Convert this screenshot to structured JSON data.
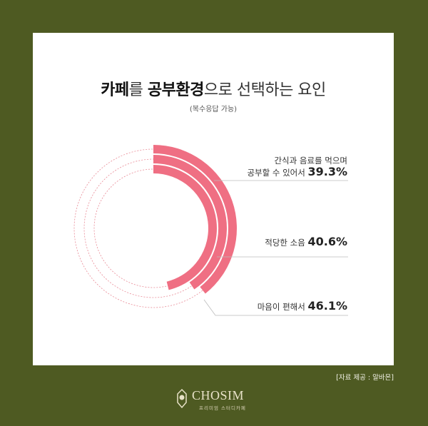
{
  "title": {
    "bold1": "카페",
    "part2": "를 ",
    "bold2": "공부환경",
    "part3": "으로 선택하는 요인"
  },
  "subtitle": "(복수응답 가능)",
  "source": "[자료 제공 : 알바몬]",
  "logo": {
    "name": "CHOSIM",
    "tagline": "프리미엄 스터디카페"
  },
  "colors": {
    "arc": "#ef6f83",
    "track": "#e98a96",
    "leader": "#bbbbbb",
    "background": "#4e5a22"
  },
  "chart_data": {
    "type": "radial-bar",
    "items": [
      {
        "label_line1": "간식과 음료를 먹으며",
        "label_line2": "공부할 수 있어서",
        "value": 39.3,
        "value_text": "39.3%"
      },
      {
        "label_line1": "",
        "label_line2": "적당한 소음",
        "value": 40.6,
        "value_text": "40.6%"
      },
      {
        "label_line1": "",
        "label_line2": "마음이 편해서",
        "value": 46.1,
        "value_text": "46.1%"
      }
    ]
  }
}
